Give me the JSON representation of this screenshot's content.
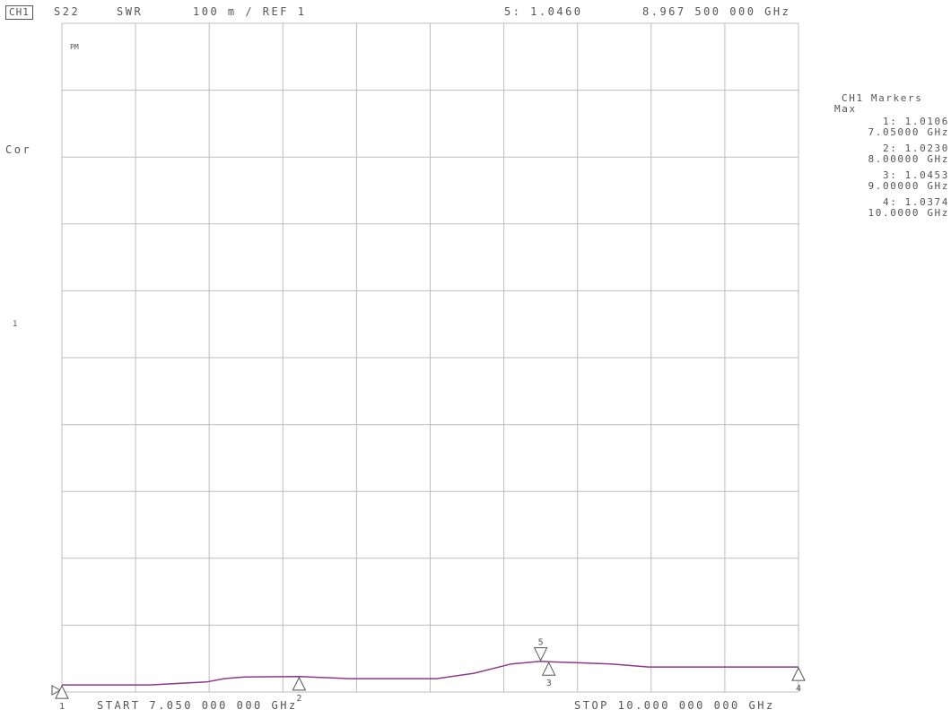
{
  "header": {
    "channel": "CH1",
    "parameter": "S22",
    "format": "SWR",
    "scale": "100 m / REF 1",
    "active_marker": "5: 1.0460",
    "active_marker_freq": "8.967 500 000 GHz"
  },
  "side": {
    "cor": "Cor",
    "pm": "PM",
    "ref_symbol": "1"
  },
  "markers_panel": {
    "title": "CH1 Markers",
    "subtitle": "Max",
    "items": [
      {
        "value": "1: 1.0106",
        "freq": "7.05000 GHz"
      },
      {
        "value": "2: 1.0230",
        "freq": "8.00000 GHz"
      },
      {
        "value": "3: 1.0453",
        "freq": "9.00000 GHz"
      },
      {
        "value": "4: 1.0374",
        "freq": "10.0000 GHz"
      }
    ]
  },
  "footer": {
    "start": "START 7.050 000 000 GHz",
    "stop": "STOP 10.000 000 000 GHz"
  },
  "colors": {
    "grid": "#bdbdbd",
    "trace": "#8b3a8b",
    "text": "#555555",
    "marker": "#555555"
  },
  "chart_data": {
    "type": "line",
    "title": "",
    "xlabel": "",
    "ylabel": "",
    "x_unit": "GHz",
    "xlim": [
      7.05,
      10.0
    ],
    "ylim": [
      1.0,
      2.0
    ],
    "grid": true,
    "series": [
      {
        "values": [
          [
            7.05,
            1.0106
          ],
          [
            7.4,
            1.0106
          ],
          [
            7.63,
            1.015
          ],
          [
            7.7,
            1.02
          ],
          [
            7.78,
            1.0225
          ],
          [
            8.0,
            1.023
          ],
          [
            8.2,
            1.02
          ],
          [
            8.55,
            1.02
          ],
          [
            8.7,
            1.028
          ],
          [
            8.85,
            1.042
          ],
          [
            8.9675,
            1.046
          ],
          [
            9.0,
            1.0453
          ],
          [
            9.25,
            1.042
          ],
          [
            9.4,
            1.0374
          ],
          [
            9.7,
            1.0374
          ],
          [
            10.0,
            1.0374
          ]
        ]
      }
    ],
    "markers": [
      {
        "label": "1",
        "x": 7.05,
        "y": 1.0106,
        "dir": "up"
      },
      {
        "label": "2",
        "x": 8.0,
        "y": 1.023,
        "dir": "up"
      },
      {
        "label": "3",
        "x": 9.0,
        "y": 1.0453,
        "dir": "up"
      },
      {
        "label": "4",
        "x": 10.0,
        "y": 1.0374,
        "dir": "up"
      },
      {
        "label": "5",
        "x": 8.9675,
        "y": 1.046,
        "dir": "down"
      }
    ]
  }
}
